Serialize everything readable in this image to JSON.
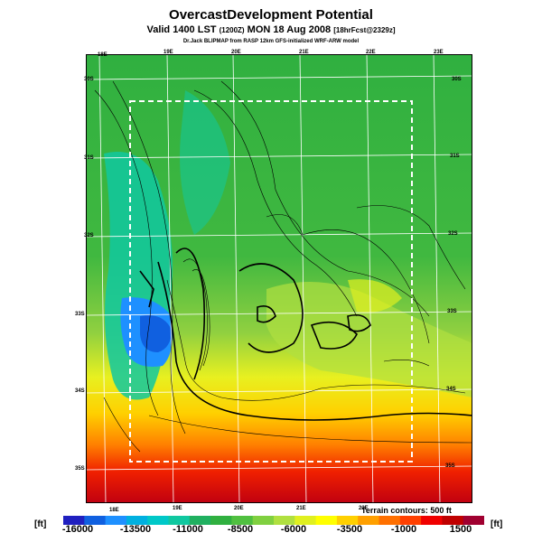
{
  "title": "OvercastDevelopment Potential",
  "subtitle": {
    "main": "Valid 1400 LST",
    "code": "(1200Z)",
    "date": "MON 18 Aug 2008",
    "forecast": "[18hrFcst@2329z]"
  },
  "credit": "Dr.Jack BLIPMAP from RASP 12km GFS-initialized WRF-ARW model",
  "lon_labels_top": [
    "18E",
    "19E",
    "20E",
    "21E",
    "22E",
    "23E"
  ],
  "lon_labels_bottom": [
    "18E",
    "19E",
    "20E",
    "21E",
    "22E"
  ],
  "lat_labels_left": [
    "30S",
    "31S",
    "32S",
    "33S",
    "34S",
    "35S"
  ],
  "lat_labels_right": [
    "30S",
    "31S",
    "32S",
    "33S",
    "34S",
    "35S"
  ],
  "contour_note": "Terrain contours: 500 ft",
  "colorbar": {
    "unit": "[ft]",
    "labels": [
      "-16000",
      "-13500",
      "-11000",
      "-8500",
      "-6000",
      "-3500",
      "-1000",
      "1500"
    ],
    "colors": [
      "#2020c0",
      "#1060e0",
      "#1e90ff",
      "#00b0e0",
      "#00c8c8",
      "#10c8a0",
      "#20b060",
      "#30b040",
      "#50c040",
      "#80d040",
      "#b0e040",
      "#e0f020",
      "#ffff00",
      "#ffd000",
      "#ffa000",
      "#ff7000",
      "#ff4000",
      "#f00000",
      "#c00000",
      "#a00030"
    ]
  }
}
